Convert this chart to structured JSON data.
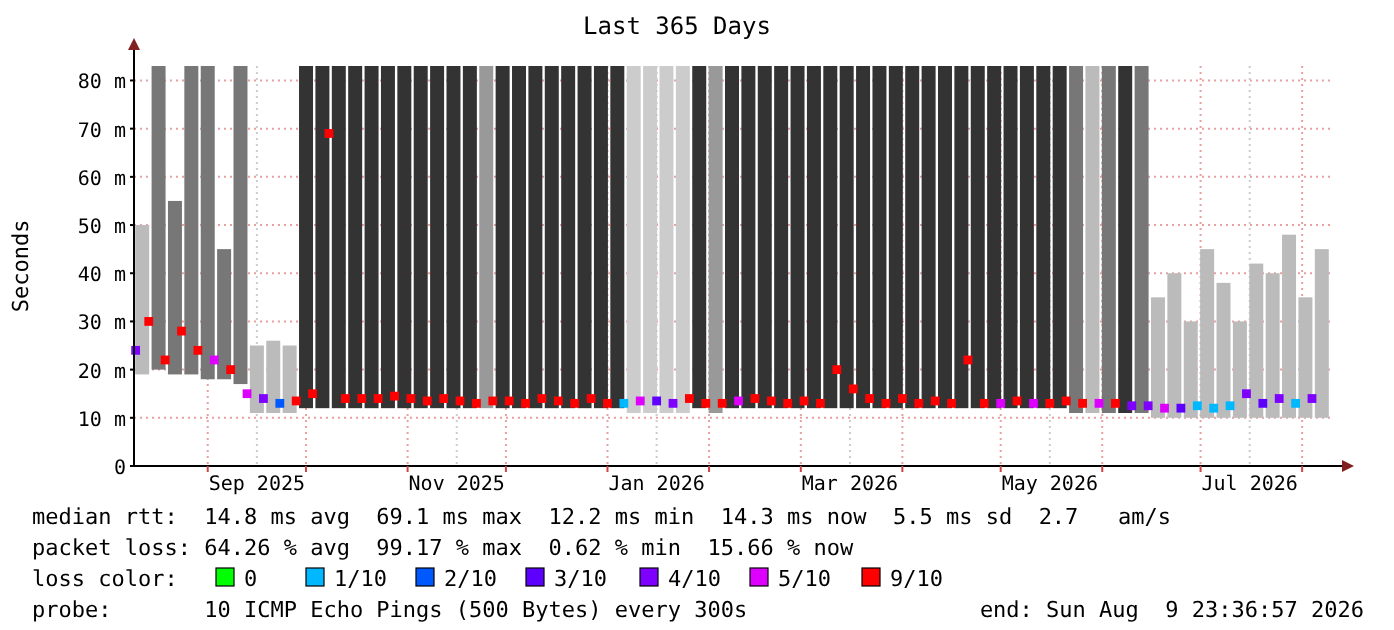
{
  "chart_data": {
    "type": "bar",
    "title": "Last 365 Days",
    "ylabel": "Seconds",
    "legend_title": "loss color:",
    "legend": "bottom",
    "grid": true,
    "xlim": [
      "2025-08-09T12:00",
      "2026-08-09T12:00"
    ],
    "xticks": [
      {
        "value": "2025-09-01",
        "label": null
      },
      {
        "value": "2025-09-16",
        "label": "Sep 2025"
      },
      {
        "value": "2025-10-01",
        "label": null
      },
      {
        "value": "2025-11-01",
        "label": null
      },
      {
        "value": "2025-11-16",
        "label": "Nov 2025"
      },
      {
        "value": "2025-12-01",
        "label": null
      },
      {
        "value": "2026-01-01",
        "label": null
      },
      {
        "value": "2026-01-16",
        "label": "Jan 2026"
      },
      {
        "value": "2026-02-01",
        "label": null
      },
      {
        "value": "2026-03-01",
        "label": null
      },
      {
        "value": "2026-03-16",
        "label": "Mar 2026"
      },
      {
        "value": "2026-04-01",
        "label": null
      },
      {
        "value": "2026-05-01",
        "label": null
      },
      {
        "value": "2026-05-16",
        "label": "May 2026"
      },
      {
        "value": "2026-06-01",
        "label": null
      },
      {
        "value": "2026-07-01",
        "label": null
      },
      {
        "value": "2026-07-16",
        "label": "Jul 2026"
      },
      {
        "value": "2026-08-01",
        "label": null
      }
    ],
    "ylim": [
      0,
      83
    ],
    "yticks": [
      {
        "value": 0,
        "label": "0"
      },
      {
        "value": 10,
        "label": "10 m"
      },
      {
        "value": 20,
        "label": "20 m"
      },
      {
        "value": 30,
        "label": "30 m"
      },
      {
        "value": 40,
        "label": "40 m"
      },
      {
        "value": 50,
        "label": "50 m"
      },
      {
        "value": 60,
        "label": "60 m"
      },
      {
        "value": 70,
        "label": "70 m"
      },
      {
        "value": 80,
        "label": "80 m"
      }
    ],
    "x": [
      "2025-08-12",
      "2025-08-17",
      "2025-08-22",
      "2025-08-27",
      "2025-09-01",
      "2025-09-06",
      "2025-09-11",
      "2025-09-16",
      "2025-09-21",
      "2025-09-26",
      "2025-10-01",
      "2025-10-06",
      "2025-10-11",
      "2025-10-16",
      "2025-10-21",
      "2025-10-26",
      "2025-10-31",
      "2025-11-05",
      "2025-11-10",
      "2025-11-15",
      "2025-11-20",
      "2025-11-25",
      "2025-11-30",
      "2025-12-05",
      "2025-12-10",
      "2025-12-15",
      "2025-12-20",
      "2025-12-25",
      "2025-12-30",
      "2026-01-04",
      "2026-01-09",
      "2026-01-14",
      "2026-01-19",
      "2026-01-24",
      "2026-01-29",
      "2026-02-03",
      "2026-02-08",
      "2026-02-13",
      "2026-02-18",
      "2026-02-23",
      "2026-02-28",
      "2026-03-05",
      "2026-03-10",
      "2026-03-15",
      "2026-03-20",
      "2026-03-25",
      "2026-03-30",
      "2026-04-04",
      "2026-04-09",
      "2026-04-14",
      "2026-04-19",
      "2026-04-24",
      "2026-04-29",
      "2026-05-04",
      "2026-05-09",
      "2026-05-14",
      "2026-05-19",
      "2026-05-24",
      "2026-05-29",
      "2026-06-03",
      "2026-06-08",
      "2026-06-13",
      "2026-06-18",
      "2026-06-23",
      "2026-06-28",
      "2026-07-03",
      "2026-07-08",
      "2026-07-13",
      "2026-07-18",
      "2026-07-23",
      "2026-07-28",
      "2026-08-02",
      "2026-08-07"
    ],
    "series": [
      {
        "base": [
          19,
          20,
          19,
          19,
          18,
          18,
          17,
          11,
          11,
          11,
          12,
          12,
          12,
          12,
          12,
          12,
          12,
          12,
          12,
          12,
          12,
          12,
          12,
          12,
          12,
          12,
          12,
          12,
          12,
          12,
          11,
          11,
          11,
          11,
          12,
          11,
          12,
          12,
          12,
          12,
          12,
          12,
          12,
          12,
          12,
          12,
          12,
          12,
          12,
          12,
          12,
          12,
          12,
          12,
          12,
          12,
          12,
          11,
          11,
          11,
          11,
          11,
          10,
          10,
          10,
          10,
          10,
          10,
          10,
          10,
          10,
          10,
          10
        ],
        "values": [
          31,
          63,
          36,
          64,
          65,
          27,
          66,
          14,
          15,
          14,
          71,
          71,
          71,
          71,
          71,
          71,
          71,
          71,
          71,
          71,
          71,
          71,
          71,
          71,
          71,
          71,
          71,
          71,
          71,
          71,
          72,
          72,
          72,
          72,
          71,
          72,
          71,
          71,
          71,
          71,
          71,
          71,
          71,
          71,
          71,
          71,
          71,
          71,
          71,
          71,
          71,
          71,
          71,
          71,
          71,
          71,
          71,
          72,
          72,
          72,
          72,
          72,
          25,
          30,
          20,
          35,
          28,
          20,
          32,
          30,
          38,
          25,
          35
        ],
        "colors": [
          "#bbbbbb",
          "#777777",
          "#777777",
          "#777777",
          "#777777",
          "#777777",
          "#777777",
          "#bbbbbb",
          "#bbbbbb",
          "#bbbbbb",
          "#333333",
          "#333333",
          "#333333",
          "#333333",
          "#333333",
          "#333333",
          "#333333",
          "#333333",
          "#333333",
          "#333333",
          "#333333",
          "#999999",
          "#333333",
          "#333333",
          "#333333",
          "#333333",
          "#333333",
          "#333333",
          "#333333",
          "#333333",
          "#cccccc",
          "#cccccc",
          "#cccccc",
          "#cccccc",
          "#333333",
          "#999999",
          "#333333",
          "#333333",
          "#333333",
          "#333333",
          "#333333",
          "#333333",
          "#333333",
          "#333333",
          "#333333",
          "#333333",
          "#333333",
          "#333333",
          "#333333",
          "#333333",
          "#333333",
          "#333333",
          "#333333",
          "#333333",
          "#333333",
          "#333333",
          "#333333",
          "#777777",
          "#bbbbbb",
          "#777777",
          "#333333",
          "#777777",
          "#bbbbbb",
          "#bbbbbb",
          "#bbbbbb",
          "#bbbbbb",
          "#bbbbbb",
          "#bbbbbb",
          "#bbbbbb",
          "#bbbbbb",
          "#bbbbbb",
          "#bbbbbb",
          "#bbbbbb"
        ]
      },
      {
        "type": "scatter",
        "name": "0",
        "color": "#00ff00",
        "values": [
          null,
          null,
          null,
          null,
          null,
          null,
          null,
          null,
          null,
          null,
          null,
          null,
          null,
          null,
          null,
          null,
          null,
          null,
          null,
          null,
          null,
          null,
          null,
          null,
          null,
          null,
          null,
          null,
          null,
          null,
          null,
          null,
          null,
          null,
          null,
          null,
          null,
          null,
          null,
          null,
          null,
          null,
          null,
          null,
          null,
          null,
          null,
          null,
          null,
          null,
          null,
          null,
          null,
          null,
          null,
          null,
          null,
          null,
          null,
          null,
          null,
          null,
          null,
          null,
          null,
          null,
          null,
          null,
          null,
          null,
          null,
          null,
          null
        ]
      },
      {
        "type": "scatter",
        "name": "1/10",
        "color": "#00b8ff",
        "x": [
          "2026-01-06",
          "2026-06-30",
          "2026-07-05",
          "2026-07-10",
          "2026-07-30"
        ],
        "values": [
          13,
          12.5,
          12,
          12.5,
          13
        ]
      },
      {
        "type": "scatter",
        "name": "2/10",
        "color": "#0059ff",
        "x": [
          "2025-09-23"
        ],
        "values": [
          13
        ]
      },
      {
        "type": "scatter",
        "name": "3/10",
        "color": "#5e00ff",
        "x": [
          "2026-01-16",
          "2026-06-25",
          "2026-07-20"
        ],
        "values": [
          13.5,
          12,
          13
        ]
      },
      {
        "type": "scatter",
        "name": "4/10",
        "color": "#7e00ff",
        "x": [
          "2025-08-10",
          "2025-09-18",
          "2026-01-21",
          "2026-06-10",
          "2026-06-15",
          "2026-07-15",
          "2026-07-25",
          "2026-08-04"
        ],
        "values": [
          24,
          14,
          13,
          12.5,
          12.5,
          15,
          14,
          14
        ]
      },
      {
        "type": "scatter",
        "name": "5/10",
        "color": "#dd00ff",
        "x": [
          "2025-09-03",
          "2025-09-13",
          "2026-01-11",
          "2026-02-10",
          "2026-05-01",
          "2026-05-11",
          "2026-05-31",
          "2026-06-20"
        ],
        "values": [
          22,
          15,
          13.5,
          13.5,
          13,
          13,
          13,
          12
        ]
      },
      {
        "type": "scatter",
        "name": "9/10",
        "color": "#ff0000",
        "x": [
          "2025-08-14",
          "2025-08-19",
          "2025-08-24",
          "2025-08-29",
          "2025-09-08",
          "2025-09-28",
          "2025-10-03",
          "2025-10-08",
          "2025-10-13",
          "2025-10-18",
          "2025-10-23",
          "2025-10-28",
          "2025-11-02",
          "2025-11-07",
          "2025-11-12",
          "2025-11-17",
          "2025-11-22",
          "2025-11-27",
          "2025-12-02",
          "2025-12-07",
          "2025-12-12",
          "2025-12-17",
          "2025-12-22",
          "2025-12-27",
          "2026-01-01",
          "2026-01-26",
          "2026-01-31",
          "2026-02-05",
          "2026-02-15",
          "2026-02-20",
          "2026-02-25",
          "2026-03-02",
          "2026-03-07",
          "2026-03-12",
          "2026-03-17",
          "2026-03-22",
          "2026-03-27",
          "2026-04-01",
          "2026-04-06",
          "2026-04-11",
          "2026-04-16",
          "2026-04-21",
          "2026-04-26",
          "2026-05-06",
          "2026-05-16",
          "2026-05-21",
          "2026-05-26",
          "2026-06-05"
        ],
        "values": [
          30,
          22,
          28,
          24,
          20,
          13.5,
          15,
          69,
          14,
          14,
          14,
          14.5,
          14,
          13.5,
          14,
          13.5,
          13,
          13.5,
          13.5,
          13,
          14,
          13.5,
          13,
          14,
          13,
          14,
          13,
          13,
          14,
          13.5,
          13,
          13.5,
          13,
          20,
          16,
          14,
          13,
          14,
          13,
          13.5,
          13,
          22,
          13,
          13.5,
          13,
          13.5,
          13,
          13
        ]
      }
    ],
    "marker": "square",
    "annotations": [
      "median rtt:  14.8 ms avg  69.1 ms max  12.2 ms min  14.3 ms now  5.5 ms sd  2.7   am/s",
      "packet loss: 64.26 % avg  99.17 % max  0.62 % min  15.66 % now",
      "probe:       10 ICMP Echo Pings (500 Bytes) every 300s",
      "end: Sun Aug  9 23:36:57 2026"
    ]
  }
}
